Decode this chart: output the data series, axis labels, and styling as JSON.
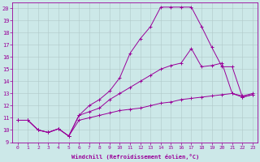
{
  "xlabel": "Windchill (Refroidissement éolien,°C)",
  "background_color": "#cce8e8",
  "grid_color": "#b0c8c8",
  "line_color": "#990099",
  "xlim": [
    -0.5,
    23.5
  ],
  "ylim": [
    9,
    20.5
  ],
  "xticks": [
    0,
    1,
    2,
    3,
    4,
    5,
    6,
    7,
    8,
    9,
    10,
    11,
    12,
    13,
    14,
    15,
    16,
    17,
    18,
    19,
    20,
    21,
    22,
    23
  ],
  "yticks": [
    9,
    10,
    11,
    12,
    13,
    14,
    15,
    16,
    17,
    18,
    19,
    20
  ],
  "line1_x": [
    0,
    1,
    2,
    3,
    4,
    5,
    6,
    7,
    8,
    9,
    10,
    11,
    12,
    13,
    14,
    15,
    16,
    17,
    18,
    19,
    20,
    21,
    22,
    23
  ],
  "line1_y": [
    10.8,
    10.8,
    10.0,
    9.8,
    10.1,
    9.5,
    10.8,
    11.0,
    11.2,
    11.4,
    11.6,
    11.7,
    11.8,
    12.0,
    12.2,
    12.3,
    12.5,
    12.6,
    12.7,
    12.8,
    12.9,
    13.0,
    12.7,
    12.9
  ],
  "line2_x": [
    0,
    1,
    2,
    3,
    4,
    5,
    6,
    7,
    8,
    9,
    10,
    11,
    12,
    13,
    14,
    15,
    16,
    17,
    18,
    19,
    20,
    21,
    22,
    23
  ],
  "line2_y": [
    10.8,
    10.8,
    10.0,
    9.8,
    10.1,
    9.5,
    11.2,
    12.0,
    12.5,
    13.2,
    14.3,
    16.3,
    17.5,
    18.5,
    20.1,
    20.1,
    20.1,
    20.1,
    18.5,
    16.8,
    15.2,
    15.2,
    12.7,
    12.9
  ],
  "line3_x": [
    0,
    1,
    2,
    3,
    4,
    5,
    6,
    7,
    8,
    9,
    10,
    11,
    12,
    13,
    14,
    15,
    16,
    17,
    18,
    19,
    20,
    21,
    22,
    23
  ],
  "line3_y": [
    10.8,
    10.8,
    10.0,
    9.8,
    10.1,
    9.5,
    11.2,
    11.5,
    11.8,
    12.5,
    13.0,
    13.5,
    14.0,
    14.5,
    15.0,
    15.3,
    15.5,
    16.7,
    15.2,
    15.3,
    15.5,
    13.0,
    12.8,
    13.0
  ]
}
